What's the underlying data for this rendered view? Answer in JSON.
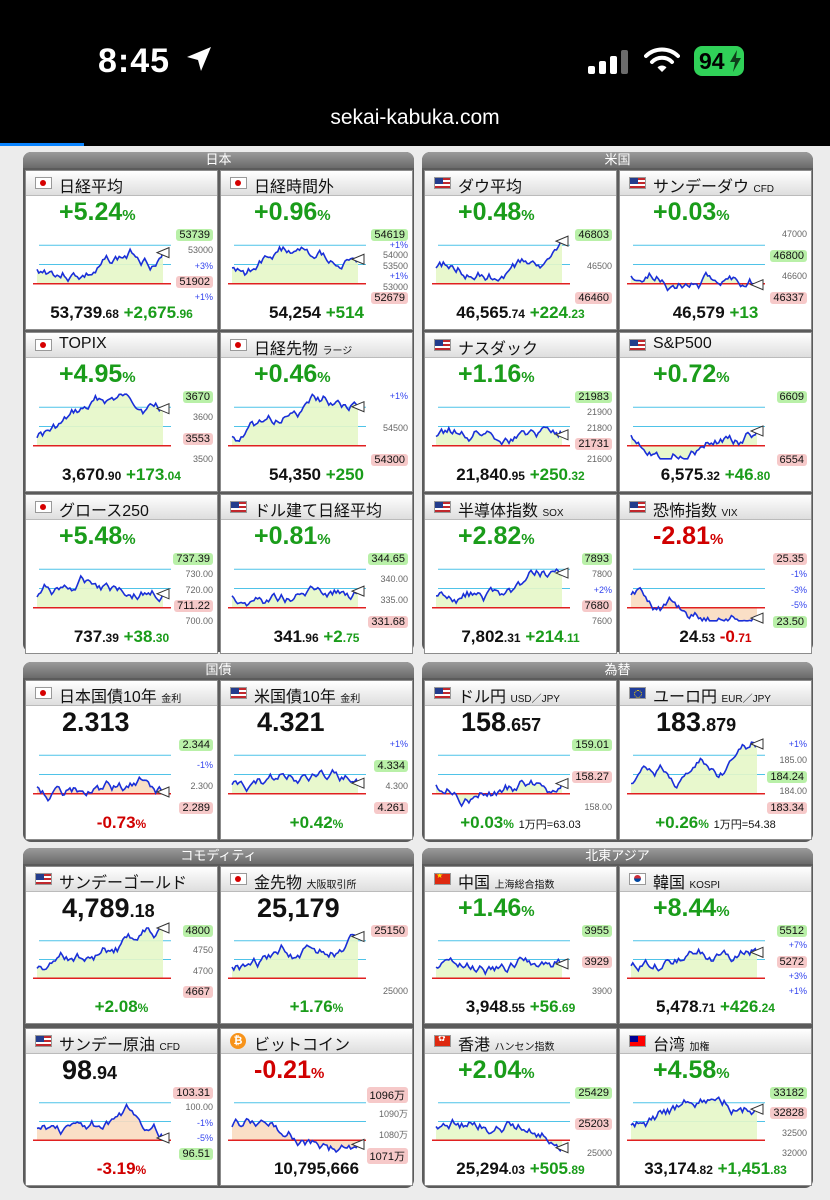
{
  "status": {
    "time": "8:45",
    "battery": "94",
    "url": "sekai-kabuka.com"
  },
  "groups": [
    {
      "title": "日本",
      "panels": [
        {
          "name": "日経平均",
          "sub": "",
          "flag": "jp",
          "change": "+5.24",
          "price_int": "53,739",
          "price_frac": ".68",
          "delta_int": "+2,675",
          "delta_frac": ".96",
          "dir": "up",
          "labels": [
            {
              "t": "53739",
              "k": "hi"
            },
            {
              "t": "53000",
              "k": "ax"
            },
            {
              "t": "+3%",
              "k": "pc"
            },
            {
              "t": "51902",
              "k": "lo"
            },
            {
              "t": "+1%",
              "k": "pc"
            }
          ]
        },
        {
          "name": "日経時間外",
          "sub": "",
          "flag": "jp",
          "change": "+0.96",
          "price_int": "54,254",
          "price_frac": "",
          "delta_int": "+514",
          "delta_frac": "",
          "dir": "up",
          "labels": [
            {
              "t": "54619",
              "k": "hi"
            },
            {
              "t": "+1%",
              "k": "pc"
            },
            {
              "t": "54000",
              "k": "ax"
            },
            {
              "t": "53500",
              "k": "ax"
            },
            {
              "t": "+1%",
              "k": "pc"
            },
            {
              "t": "53000",
              "k": "ax"
            },
            {
              "t": "52679",
              "k": "lo"
            }
          ]
        },
        {
          "name": "TOPIX",
          "sub": "",
          "flag": "jp",
          "change": "+4.95",
          "price_int": "3,670",
          "price_frac": ".90",
          "delta_int": "+173",
          "delta_frac": ".04",
          "dir": "up",
          "labels": [
            {
              "t": "3670",
              "k": "hi"
            },
            {
              "t": "3600",
              "k": "ax"
            },
            {
              "t": "3553",
              "k": "lo"
            },
            {
              "t": "3500",
              "k": "ax"
            }
          ]
        },
        {
          "name": "日経先物",
          "sub": "ラージ",
          "flag": "jp",
          "change": "+0.46",
          "price_int": "54,350",
          "price_frac": "",
          "delta_int": "+250",
          "delta_frac": "",
          "dir": "up",
          "labels": [
            {
              "t": "+1%",
              "k": "pc"
            },
            {
              "t": "54500",
              "k": "ax"
            },
            {
              "t": "54300",
              "k": "lo"
            }
          ]
        },
        {
          "name": "グロース250",
          "sub": "",
          "flag": "jp",
          "change": "+5.48",
          "price_int": "737",
          "price_frac": ".39",
          "delta_int": "+38",
          "delta_frac": ".30",
          "dir": "up",
          "labels": [
            {
              "t": "737.39",
              "k": "hi"
            },
            {
              "t": "730.00",
              "k": "ax"
            },
            {
              "t": "720.00",
              "k": "ax"
            },
            {
              "t": "711.22",
              "k": "lo"
            },
            {
              "t": "700.00",
              "k": "ax"
            }
          ]
        },
        {
          "name": "ドル建て日経平均",
          "sub": "",
          "flag": "us",
          "change": "+0.81",
          "price_int": "341",
          "price_frac": ".96",
          "delta_int": "+2",
          "delta_frac": ".75",
          "dir": "up",
          "labels": [
            {
              "t": "344.65",
              "k": "hi"
            },
            {
              "t": "340.00",
              "k": "ax"
            },
            {
              "t": "335.00",
              "k": "ax"
            },
            {
              "t": "331.68",
              "k": "lo"
            }
          ]
        }
      ]
    },
    {
      "title": "米国",
      "panels": [
        {
          "name": "ダウ平均",
          "sub": "",
          "flag": "us",
          "change": "+0.48",
          "price_int": "46,565",
          "price_frac": ".74",
          "delta_int": "+224",
          "delta_frac": ".23",
          "dir": "up",
          "labels": [
            {
              "t": "46803",
              "k": "hi"
            },
            {
              "t": "46500",
              "k": "ax"
            },
            {
              "t": "46460",
              "k": "lo"
            }
          ]
        },
        {
          "name": "サンデーダウ",
          "sub": "CFD",
          "flag": "us",
          "change": "+0.03",
          "price_int": "46,579",
          "price_frac": "",
          "delta_int": "+13",
          "delta_frac": "",
          "dir": "up",
          "labels": [
            {
              "t": "47000",
              "k": "ax"
            },
            {
              "t": "46800",
              "k": "hi"
            },
            {
              "t": "46600",
              "k": "ax"
            },
            {
              "t": "46337",
              "k": "lo"
            }
          ]
        },
        {
          "name": "ナスダック",
          "sub": "",
          "flag": "us",
          "change": "+1.16",
          "price_int": "21,840",
          "price_frac": ".95",
          "delta_int": "+250",
          "delta_frac": ".32",
          "dir": "up",
          "labels": [
            {
              "t": "21983",
              "k": "hi"
            },
            {
              "t": "21900",
              "k": "ax"
            },
            {
              "t": "21800",
              "k": "ax"
            },
            {
              "t": "21731",
              "k": "lo"
            },
            {
              "t": "21600",
              "k": "ax"
            }
          ]
        },
        {
          "name": "S&P500",
          "sub": "",
          "flag": "us",
          "change": "+0.72",
          "price_int": "6,575",
          "price_frac": ".32",
          "delta_int": "+46",
          "delta_frac": ".80",
          "dir": "up",
          "labels": [
            {
              "t": "6609",
              "k": "hi"
            },
            {
              "t": "6554",
              "k": "lo"
            }
          ]
        },
        {
          "name": "半導体指数",
          "sub": "SOX",
          "flag": "us",
          "change": "+2.82",
          "price_int": "7,802",
          "price_frac": ".31",
          "delta_int": "+214",
          "delta_frac": ".11",
          "dir": "up",
          "labels": [
            {
              "t": "7893",
              "k": "hi"
            },
            {
              "t": "7800",
              "k": "ax"
            },
            {
              "t": "+2%",
              "k": "pc"
            },
            {
              "t": "7680",
              "k": "lo"
            },
            {
              "t": "7600",
              "k": "ax"
            }
          ]
        },
        {
          "name": "恐怖指数",
          "sub": "VIX",
          "flag": "us",
          "change": "-2.81",
          "price_int": "24",
          "price_frac": ".53",
          "delta_int": "-0",
          "delta_frac": ".71",
          "dir": "dn",
          "labels": [
            {
              "t": "25.35",
              "k": "lo"
            },
            {
              "t": "-1%",
              "k": "pc"
            },
            {
              "t": "-3%",
              "k": "pc"
            },
            {
              "t": "-5%",
              "k": "pc"
            },
            {
              "t": "23.50",
              "k": "hi"
            }
          ]
        }
      ]
    },
    {
      "title": "国債",
      "panels": [
        {
          "name": "日本国債10年",
          "sub": "金利",
          "flag": "jp",
          "big_int": "2.313",
          "big_frac": "",
          "foot": "-0.73",
          "dir": "dn",
          "labels": [
            {
              "t": "2.344",
              "k": "hi"
            },
            {
              "t": "-1%",
              "k": "pc"
            },
            {
              "t": "2.300",
              "k": "ax"
            },
            {
              "t": "2.289",
              "k": "lo"
            }
          ]
        },
        {
          "name": "米国債10年",
          "sub": "金利",
          "flag": "us",
          "big_int": "4.321",
          "big_frac": "",
          "foot": "+0.42",
          "dir": "up",
          "labels": [
            {
              "t": "+1%",
              "k": "pc"
            },
            {
              "t": "4.334",
              "k": "hi"
            },
            {
              "t": "4.300",
              "k": "ax"
            },
            {
              "t": "4.261",
              "k": "lo"
            }
          ]
        }
      ]
    },
    {
      "title": "為替",
      "panels": [
        {
          "name": "ドル円",
          "sub": "USD／JPY",
          "flag": "us",
          "big_int": "158",
          "big_frac": ".657",
          "foot": "+0.03",
          "note": "1万円=63.03",
          "dir": "up",
          "labels": [
            {
              "t": "159.01",
              "k": "hi"
            },
            {
              "t": "158.27",
              "k": "lo"
            },
            {
              "t": "158.00",
              "k": "ax"
            }
          ]
        },
        {
          "name": "ユーロ円",
          "sub": "EUR／JPY",
          "flag": "eu",
          "big_int": "183",
          "big_frac": ".879",
          "foot": "+0.26",
          "note": "1万円=54.38",
          "dir": "up",
          "labels": [
            {
              "t": "+1%",
              "k": "pc"
            },
            {
              "t": "185.00",
              "k": "ax"
            },
            {
              "t": "184.24",
              "k": "hi"
            },
            {
              "t": "184.00",
              "k": "ax"
            },
            {
              "t": "183.34",
              "k": "lo"
            }
          ]
        }
      ]
    },
    {
      "title": "コモディティ",
      "panels": [
        {
          "name": "サンデーゴールド",
          "sub": "",
          "flag": "us",
          "big_int": "4,789",
          "big_frac": ".18",
          "foot": "+2.08",
          "dir": "up",
          "labels": [
            {
              "t": "4800",
              "k": "hi"
            },
            {
              "t": "4750",
              "k": "ax"
            },
            {
              "t": "4700",
              "k": "ax"
            },
            {
              "t": "4667",
              "k": "lo"
            }
          ]
        },
        {
          "name": "金先物",
          "sub": "大阪取引所",
          "flag": "jp",
          "big_int": "25,179",
          "big_frac": "",
          "foot": "+1.76",
          "dir": "up",
          "labels": [
            {
              "t": "25150",
              "k": "lo"
            },
            {
              "t": "25000",
              "k": "ax"
            }
          ]
        },
        {
          "name": "サンデー原油",
          "sub": "CFD",
          "flag": "us",
          "big_int": "98",
          "big_frac": ".94",
          "foot": "-3.19",
          "dir": "dn",
          "labels": [
            {
              "t": "103.31",
              "k": "lo"
            },
            {
              "t": "100.00",
              "k": "ax"
            },
            {
              "t": "-1%",
              "k": "pc"
            },
            {
              "t": "-5%",
              "k": "pc"
            },
            {
              "t": "96.51",
              "k": "hi"
            }
          ]
        },
        {
          "name": "ビットコイン",
          "sub": "",
          "flag": "btc",
          "change": "-0.21",
          "price_int": "10,795,666",
          "price_frac": "",
          "delta_int": "",
          "delta_frac": "",
          "dir": "dn",
          "labels": [
            {
              "t": "1096万",
              "k": "lo"
            },
            {
              "t": "1090万",
              "k": "ax"
            },
            {
              "t": "1080万",
              "k": "ax"
            },
            {
              "t": "1071万",
              "k": "lo"
            }
          ]
        }
      ]
    },
    {
      "title": "北東アジア",
      "panels": [
        {
          "name": "中国",
          "sub": "上海総合指数",
          "flag": "cn",
          "change": "+1.46",
          "price_int": "3,948",
          "price_frac": ".55",
          "delta_int": "+56",
          "delta_frac": ".69",
          "dir": "up",
          "labels": [
            {
              "t": "3955",
              "k": "hi"
            },
            {
              "t": "3929",
              "k": "lo"
            },
            {
              "t": "3900",
              "k": "ax"
            }
          ]
        },
        {
          "name": "韓国",
          "sub": "KOSPI",
          "flag": "kr",
          "change": "+8.44",
          "price_int": "5,478",
          "price_frac": ".71",
          "delta_int": "+426",
          "delta_frac": ".24",
          "dir": "up",
          "labels": [
            {
              "t": "5512",
              "k": "hi"
            },
            {
              "t": "+7%",
              "k": "pc"
            },
            {
              "t": "5272",
              "k": "lo"
            },
            {
              "t": "+3%",
              "k": "pc"
            },
            {
              "t": "+1%",
              "k": "pc"
            }
          ]
        },
        {
          "name": "香港",
          "sub": "ハンセン指数",
          "flag": "hk",
          "change": "+2.04",
          "price_int": "25,294",
          "price_frac": ".03",
          "delta_int": "+505",
          "delta_frac": ".89",
          "dir": "up",
          "labels": [
            {
              "t": "25429",
              "k": "hi"
            },
            {
              "t": "25203",
              "k": "lo"
            },
            {
              "t": "25000",
              "k": "ax"
            }
          ]
        },
        {
          "name": "台湾",
          "sub": "加権",
          "flag": "tw",
          "change": "+4.58",
          "price_int": "33,174",
          "price_frac": ".82",
          "delta_int": "+1,451",
          "delta_frac": ".83",
          "dir": "up",
          "labels": [
            {
              "t": "33182",
              "k": "hi"
            },
            {
              "t": "32828",
              "k": "lo"
            },
            {
              "t": "32500",
              "k": "ax"
            },
            {
              "t": "32000",
              "k": "ax"
            }
          ]
        }
      ]
    }
  ]
}
